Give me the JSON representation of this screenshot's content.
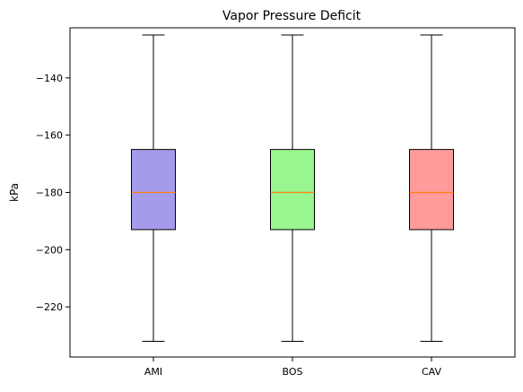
{
  "chart_data": {
    "type": "box",
    "title": "Vapor Pressure Deficit",
    "xlabel": "",
    "ylabel": "kPa",
    "ylim": [
      -237.5,
      -122.5
    ],
    "yticks": [
      -140,
      -160,
      -180,
      -200,
      -220
    ],
    "grid": false,
    "categories": [
      "AMI",
      "BOS",
      "CAV"
    ],
    "boxes": [
      {
        "category": "AMI",
        "whisker_low": -232,
        "q1": -193,
        "median": -180,
        "q3": -165,
        "whisker_high": -125,
        "color": "#a59bec"
      },
      {
        "category": "BOS",
        "whisker_low": -232,
        "q1": -193,
        "median": -180,
        "q3": -165,
        "whisker_high": -125,
        "color": "#98f58f"
      },
      {
        "category": "CAV",
        "whisker_low": -232,
        "q1": -193,
        "median": -180,
        "q3": -165,
        "whisker_high": -125,
        "color": "#ff9b9b"
      }
    ],
    "median_color": "#ff7f0e"
  }
}
